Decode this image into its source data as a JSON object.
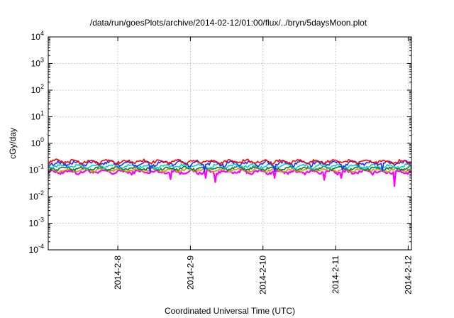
{
  "chart_data": {
    "type": "line",
    "title": "/data/run/goesPlots/archive/2014-02-12/01:00/flux/../bryn/5daysMoon.plot",
    "xlabel": "Coordinated Universal Time (UTC)",
    "ylabel": "cGy/day",
    "yscale": "log",
    "ylim": [
      0.0001,
      10000
    ],
    "xlim": [
      "2014-02-07T01:00",
      "2014-02-12T01:05"
    ],
    "x_ticks": [
      {
        "date": "2014-02-08T00:00",
        "label": "2014-2-8"
      },
      {
        "date": "2014-02-09T00:00",
        "label": "2014-2-9"
      },
      {
        "date": "2014-02-10T00:00",
        "label": "2014-2-10"
      },
      {
        "date": "2014-02-11T00:00",
        "label": "2014-2-11"
      },
      {
        "date": "2014-02-12T00:00",
        "label": "2014-2-12"
      }
    ],
    "y_ticks": [
      {
        "value": 0.0001,
        "base": "10",
        "exp": "-4"
      },
      {
        "value": 0.001,
        "base": "10",
        "exp": "-3"
      },
      {
        "value": 0.01,
        "base": "10",
        "exp": "-2"
      },
      {
        "value": 0.1,
        "base": "10",
        "exp": "-1"
      },
      {
        "value": 1,
        "base": "10",
        "exp": "0"
      },
      {
        "value": 10,
        "base": "10",
        "exp": "1"
      },
      {
        "value": 100,
        "base": "10",
        "exp": "2"
      },
      {
        "value": 1000,
        "base": "10",
        "exp": "3"
      },
      {
        "value": 10000,
        "base": "10",
        "exp": "4"
      }
    ],
    "grid": true,
    "series": [
      {
        "color": "#ff00ff",
        "base": 0.085,
        "amp": 0.12,
        "dips": [
          [
            1.68,
            0.045
          ],
          [
            2.17,
            0.05
          ],
          [
            2.3,
            0.035
          ],
          [
            3.12,
            0.05
          ],
          [
            3.8,
            0.042
          ],
          [
            4.04,
            0.05
          ],
          [
            4.77,
            0.025
          ]
        ]
      },
      {
        "color": "#c8a000",
        "base": 0.1,
        "amp": 0.1,
        "dips": []
      },
      {
        "color": "#0a7a2a",
        "base": 0.115,
        "amp": 0.1,
        "dips": []
      },
      {
        "color": "#00d0d0",
        "base": 0.14,
        "amp": 0.12,
        "dips": []
      },
      {
        "color": "#2030ff",
        "base": 0.18,
        "amp": 0.15,
        "dips": [
          [
            1.4,
            0.085
          ],
          [
            2.15,
            0.09
          ],
          [
            3.12,
            0.09
          ],
          [
            4.05,
            0.1
          ],
          [
            4.6,
            0.09
          ]
        ]
      },
      {
        "color": "#ff0000",
        "base": 0.21,
        "amp": 0.12,
        "dips": []
      }
    ]
  }
}
